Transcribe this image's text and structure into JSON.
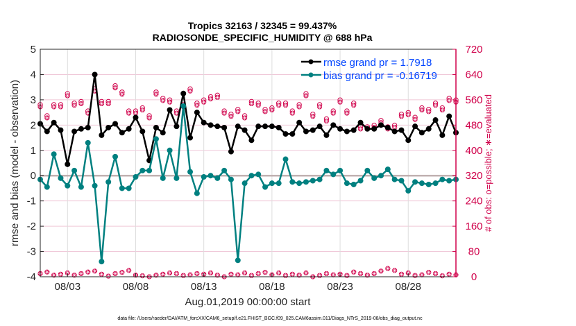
{
  "chart_data": {
    "type": "line",
    "title": [
      "Tropics 32163 / 32345 = 99.437%",
      "RADIOSONDE_SPECIFIC_HUMIDITY @ 688 hPa"
    ],
    "xlabel": "Aug.01,2019 00:00:00 start",
    "ylabel_left": "rmse and bias (model - observation)",
    "ylabel_right": "# of obs: o=possible; ∗=evaluated",
    "footnote": "data file: /Users/raeder/DAI/ATM_forcXX/CAM6_setup/f.e21.FHIST_BGC.f09_025.CAM6assim.011/Diags_NTrS_2019-08/obs_diag_output.nc",
    "xlim": [
      1.0,
      31.5
    ],
    "ylim_left": [
      -4,
      5
    ],
    "ylim_right": [
      0,
      720
    ],
    "yticks_left": [
      -4,
      -3,
      -2,
      -1,
      0,
      1,
      2,
      3,
      4,
      5
    ],
    "yticks_right": [
      0,
      80,
      160,
      240,
      320,
      400,
      480,
      560,
      640,
      720
    ],
    "xticks": [
      {
        "value": 3,
        "label": "08/03"
      },
      {
        "value": 8,
        "label": "08/08"
      },
      {
        "value": 13,
        "label": "08/13"
      },
      {
        "value": 18,
        "label": "08/18"
      },
      {
        "value": 23,
        "label": "08/23"
      },
      {
        "value": 28,
        "label": "08/28"
      }
    ],
    "grid": true,
    "zero_line": true,
    "legend_position": "top-right",
    "legend": [
      {
        "label": "rmse grand pr = 1.7918",
        "color": "#000000"
      },
      {
        "label": "bias grand pr = -0.16719",
        "color": "#008080"
      }
    ],
    "colors": {
      "rmse": "#000000",
      "bias": "#008080",
      "obs": "#d0004a",
      "right_axis": "#d0004a",
      "legend_text": "#0044ff",
      "grid": "#f0c8d8",
      "zero_line": "#c0b0b0"
    },
    "x": [
      1.0,
      1.5,
      2.0,
      2.5,
      3.0,
      3.5,
      4.0,
      4.5,
      5.0,
      5.5,
      6.0,
      6.5,
      7.0,
      7.5,
      8.0,
      8.5,
      9.0,
      9.5,
      10.0,
      10.5,
      11.0,
      11.5,
      12.0,
      12.5,
      13.0,
      13.5,
      14.0,
      14.5,
      15.0,
      15.5,
      16.0,
      16.5,
      17.0,
      17.5,
      18.0,
      18.5,
      19.0,
      19.5,
      20.0,
      20.5,
      21.0,
      21.5,
      22.0,
      22.5,
      23.0,
      23.5,
      24.0,
      24.5,
      25.0,
      25.5,
      26.0,
      26.5,
      27.0,
      27.5,
      28.0,
      28.5,
      29.0,
      29.5,
      30.0,
      30.5,
      31.0,
      31.5
    ],
    "series": [
      {
        "name": "rmse",
        "values": [
          2.05,
          1.75,
          2.1,
          1.8,
          0.45,
          1.75,
          1.85,
          1.9,
          4.0,
          1.6,
          1.9,
          2.05,
          1.7,
          1.85,
          2.3,
          1.75,
          0.6,
          1.9,
          1.7,
          2.6,
          1.95,
          3.25,
          1.5,
          2.5,
          2.1,
          2.0,
          1.95,
          1.9,
          0.95,
          1.95,
          1.8,
          1.4,
          1.95,
          1.95,
          1.95,
          1.9,
          1.65,
          1.65,
          2.1,
          1.75,
          1.8,
          1.95,
          1.6,
          2.0,
          1.85,
          1.75,
          1.8,
          2.1,
          1.85,
          1.85,
          2.0,
          1.9,
          1.75,
          1.8,
          1.4,
          1.95,
          1.7,
          1.85,
          2.2,
          1.6,
          2.35,
          1.7
        ]
      },
      {
        "name": "bias",
        "values": [
          -0.15,
          -0.45,
          0.85,
          -0.1,
          -0.4,
          0.2,
          -0.45,
          1.3,
          -0.4,
          -3.4,
          -0.25,
          0.75,
          -0.5,
          -0.5,
          -0.05,
          0.2,
          0.2,
          1.45,
          -0.1,
          1.0,
          -0.1,
          2.75,
          0.15,
          -0.7,
          -0.05,
          0.0,
          -0.1,
          0.2,
          -0.15,
          -3.35,
          -0.3,
          0.0,
          0.05,
          -0.45,
          -0.3,
          -0.3,
          0.65,
          -0.25,
          -0.3,
          -0.25,
          -0.2,
          -0.15,
          0.2,
          0.05,
          0.2,
          -0.3,
          -0.35,
          -0.2,
          0.2,
          -0.1,
          0.0,
          0.25,
          -0.15,
          -0.2,
          -0.6,
          -0.25,
          -0.3,
          -0.35,
          -0.3,
          -0.15,
          -0.2,
          -0.15
        ]
      },
      {
        "name": "obs_possible",
        "values": [
          540,
          505,
          540,
          540,
          575,
          545,
          550,
          520,
          590,
          550,
          550,
          600,
          580,
          520,
          520,
          530,
          505,
          580,
          560,
          555,
          520,
          540,
          590,
          545,
          555,
          565,
          570,
          520,
          510,
          525,
          505,
          550,
          545,
          525,
          530,
          545,
          545,
          520,
          540,
          575,
          510,
          540,
          495,
          520,
          555,
          520,
          545,
          470,
          470,
          475,
          490,
          470,
          475,
          510,
          515,
          500,
          530,
          525,
          545,
          530,
          560,
          555
        ]
      },
      {
        "name": "obs_evaluated",
        "values": [
          10,
          15,
          5,
          8,
          12,
          5,
          10,
          15,
          18,
          8,
          2,
          10,
          14,
          20,
          5,
          3,
          0,
          5,
          8,
          12,
          10,
          4,
          6,
          10,
          8,
          12,
          5,
          0,
          8,
          6,
          12,
          4,
          10,
          14,
          6,
          12,
          4,
          8,
          5,
          12,
          0,
          4,
          10,
          6,
          8,
          4,
          15,
          10,
          5,
          10,
          18,
          26,
          20,
          8,
          12,
          4,
          6,
          14,
          10,
          3,
          8,
          6
        ]
      }
    ]
  }
}
